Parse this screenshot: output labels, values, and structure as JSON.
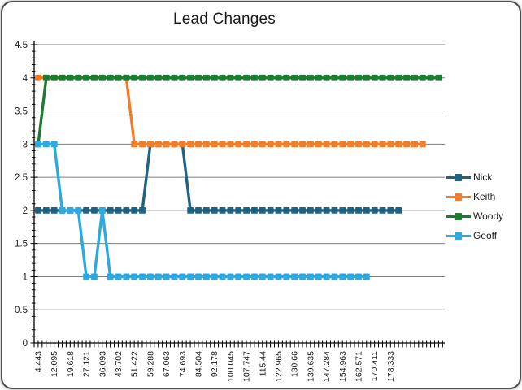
{
  "window": {
    "title_label": "Lead Changes"
  },
  "chart_data": {
    "type": "line",
    "title": "Lead Changes",
    "xlabel": "",
    "ylabel": "",
    "ylim": [
      0,
      4.5
    ],
    "y_tick_step": 0.5,
    "y_minor_tick_step": 0.1,
    "y_tick_labels": [
      "4.5",
      "4",
      "3.5",
      "3",
      "2.5",
      "2",
      "1.5",
      "1",
      "0.5",
      "0"
    ],
    "x_tick_labels": [
      "4.443",
      "12.095",
      "19.618",
      "27.121",
      "36.093",
      "43.702",
      "51.422",
      "59.288",
      "67.063",
      "74.693",
      "84.504",
      "92.178",
      "100.045",
      "107.747",
      "115.44",
      "122.965",
      "130.66",
      "139.635",
      "147.284",
      "154.963",
      "162.571",
      "170.411",
      "178.333"
    ],
    "x_label_every_n_categories": 2,
    "grid": true,
    "gridline_color": "#7f7f7f",
    "axis_color": "#000000",
    "legend_position": "right",
    "marker_style": "square",
    "series": [
      {
        "name": "Nick",
        "color": "#1e6284",
        "values": [
          2,
          2,
          2,
          2,
          2,
          2,
          2,
          2,
          2,
          2,
          2,
          2,
          2,
          2,
          3,
          3,
          3,
          3,
          3,
          2,
          2,
          2,
          2,
          2,
          2,
          2,
          2,
          2,
          2,
          2,
          2,
          2,
          2,
          2,
          2,
          2,
          2,
          2,
          2,
          2,
          2,
          2,
          2,
          2,
          2,
          2
        ]
      },
      {
        "name": "Keith",
        "color": "#f07d2a",
        "values": [
          4,
          4,
          4,
          4,
          4,
          4,
          4,
          4,
          4,
          4,
          4,
          4,
          3,
          3,
          3,
          3,
          3,
          3,
          3,
          3,
          3,
          3,
          3,
          3,
          3,
          3,
          3,
          3,
          3,
          3,
          3,
          3,
          3,
          3,
          3,
          3,
          3,
          3,
          3,
          3,
          3,
          3,
          3,
          3,
          3,
          3,
          3,
          3,
          3
        ]
      },
      {
        "name": "Woody",
        "color": "#1e7b33",
        "values": [
          3,
          4,
          4,
          4,
          4,
          4,
          4,
          4,
          4,
          4,
          4,
          4,
          4,
          4,
          4,
          4,
          4,
          4,
          4,
          4,
          4,
          4,
          4,
          4,
          4,
          4,
          4,
          4,
          4,
          4,
          4,
          4,
          4,
          4,
          4,
          4,
          4,
          4,
          4,
          4,
          4,
          4,
          4,
          4,
          4,
          4,
          4,
          4,
          4,
          4,
          4
        ]
      },
      {
        "name": "Geoff",
        "color": "#2baae2",
        "values": [
          3,
          3,
          3,
          2,
          2,
          2,
          1,
          1,
          2,
          1,
          1,
          1,
          1,
          1,
          1,
          1,
          1,
          1,
          1,
          1,
          1,
          1,
          1,
          1,
          1,
          1,
          1,
          1,
          1,
          1,
          1,
          1,
          1,
          1,
          1,
          1,
          1,
          1,
          1,
          1,
          1,
          1
        ]
      }
    ]
  }
}
